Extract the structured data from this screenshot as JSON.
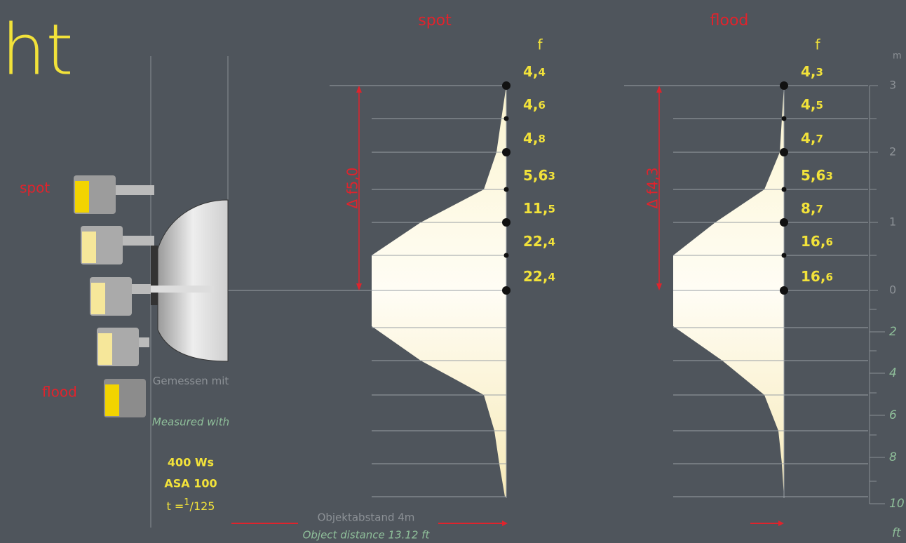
{
  "header": {
    "title_fragment": "ht"
  },
  "lamp_labels": {
    "spot": "spot",
    "flood": "flood"
  },
  "measurement": {
    "de": "Gemessen mit",
    "en": "Measured with",
    "power": "400 Ws",
    "asa": "ASA 100",
    "shutter": [
      "t =",
      "1",
      "/125"
    ]
  },
  "panels": [
    {
      "title": "spot",
      "f_label": "f",
      "delta": "Δ f5,0",
      "fstops": [
        [
          "4,",
          "4"
        ],
        [
          "4,",
          "6"
        ],
        [
          "4,",
          "8"
        ],
        [
          "5,6",
          "3"
        ],
        [
          "11,",
          "5"
        ],
        [
          "22,",
          "4"
        ],
        [
          "22,",
          "4"
        ]
      ]
    },
    {
      "title": "flood",
      "f_label": "f",
      "delta": "Δ f4,3",
      "fstops": [
        [
          "4,",
          "3"
        ],
        [
          "4,",
          "5"
        ],
        [
          "4,",
          "7"
        ],
        [
          "5,6",
          "3"
        ],
        [
          "8,",
          "7"
        ],
        [
          "16,",
          "6"
        ],
        [
          "16,",
          "6"
        ]
      ]
    }
  ],
  "axis": {
    "m_unit": "m",
    "m_ticks": [
      "3",
      "2",
      "1",
      "0"
    ],
    "ft_ticks": [
      "2",
      "4",
      "6",
      "8",
      "10"
    ],
    "ft_unit": "ft"
  },
  "distance": {
    "de": "Objektabstand 4m",
    "en": "Object distance 13.12 ft"
  }
}
